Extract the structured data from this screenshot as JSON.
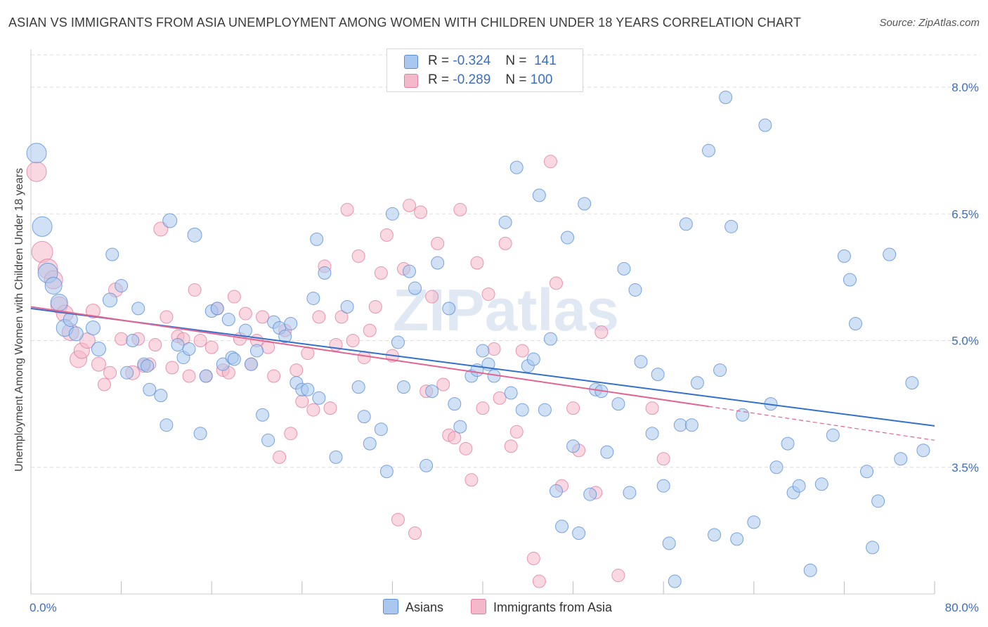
{
  "title": "ASIAN VS IMMIGRANTS FROM ASIA UNEMPLOYMENT AMONG WOMEN WITH CHILDREN UNDER 18 YEARS CORRELATION CHART",
  "source": "Source: ZipAtlas.com",
  "watermark": "ZIPatlas",
  "legend": {
    "rows": [
      {
        "r_label": "R =",
        "r_value": "-0.324",
        "n_label": "N =",
        "n_value": "141"
      },
      {
        "r_label": "R =",
        "r_value": "-0.289",
        "n_label": "N =",
        "n_value": "100"
      }
    ]
  },
  "colors": {
    "asians_fill": "#aac8ef",
    "asians_stroke": "#5a8ed6",
    "asians_line": "#3370cc",
    "immig_fill": "#f4b8cb",
    "immig_stroke": "#e47d9f",
    "immig_line": "#e26591",
    "grid": "#dddddd",
    "tick_text": "#3a6fc4"
  },
  "chart_data": {
    "type": "scatter",
    "title": "ASIAN VS IMMIGRANTS FROM ASIA UNEMPLOYMENT AMONG WOMEN WITH CHILDREN UNDER 18 YEARS CORRELATION CHART",
    "xlabel": "",
    "ylabel": "Unemployment Among Women with Children Under 18 years",
    "xlim": [
      0,
      80
    ],
    "ylim": [
      2.0,
      8.5
    ],
    "x_tick_labels": [
      "0.0%",
      "80.0%"
    ],
    "y_ticks": [
      3.5,
      5.0,
      6.5,
      8.0
    ],
    "y_tick_labels": [
      "3.5%",
      "5.0%",
      "6.5%",
      "8.0%"
    ],
    "grid": true,
    "legend_position": "top-center",
    "series": [
      {
        "name": "Asians",
        "trend": {
          "x0": 0,
          "y0": 5.38,
          "x1": 80,
          "y1": 3.99
        },
        "points": [
          [
            0.5,
            7.22,
            14
          ],
          [
            1,
            6.35,
            14
          ],
          [
            1.5,
            5.8,
            14
          ],
          [
            2,
            5.65,
            12
          ],
          [
            2.5,
            5.45,
            12
          ],
          [
            3,
            5.15,
            12
          ],
          [
            3.5,
            5.25,
            10
          ],
          [
            4,
            5.08,
            10
          ],
          [
            5.5,
            5.15,
            10
          ],
          [
            6,
            4.9,
            10
          ],
          [
            7,
            5.48,
            10
          ],
          [
            7.2,
            6.02,
            9
          ],
          [
            8,
            5.65,
            9
          ],
          [
            8.5,
            4.62,
            9
          ],
          [
            9,
            5.0,
            9
          ],
          [
            9.5,
            5.38,
            9
          ],
          [
            10,
            4.72,
            9
          ],
          [
            10.3,
            4.7,
            9
          ],
          [
            10.5,
            4.42,
            9
          ],
          [
            11.5,
            4.35,
            9
          ],
          [
            12,
            4.0,
            9
          ],
          [
            12.3,
            6.42,
            10
          ],
          [
            13,
            4.95,
            9
          ],
          [
            13.5,
            4.8,
            9
          ],
          [
            14,
            4.9,
            9
          ],
          [
            14.5,
            6.25,
            10
          ],
          [
            15,
            3.9,
            9
          ],
          [
            15.5,
            4.58,
            9
          ],
          [
            16,
            5.35,
            9
          ],
          [
            16.5,
            5.38,
            9
          ],
          [
            17,
            4.72,
            9
          ],
          [
            17.5,
            5.25,
            9
          ],
          [
            17.8,
            4.8,
            9
          ],
          [
            18,
            4.78,
            9
          ],
          [
            19,
            5.12,
            9
          ],
          [
            19.5,
            4.72,
            9
          ],
          [
            20,
            4.88,
            9
          ],
          [
            20.5,
            4.12,
            9
          ],
          [
            21,
            3.82,
            9
          ],
          [
            21.5,
            5.22,
            9
          ],
          [
            22,
            5.15,
            9
          ],
          [
            22.5,
            5.05,
            9
          ],
          [
            23,
            5.2,
            9
          ],
          [
            23.5,
            4.5,
            9
          ],
          [
            24,
            4.42,
            9
          ],
          [
            24.5,
            4.42,
            9
          ],
          [
            25,
            5.5,
            9
          ],
          [
            25.3,
            6.2,
            9
          ],
          [
            25.5,
            4.32,
            9
          ],
          [
            26,
            5.8,
            9
          ],
          [
            27,
            3.62,
            9
          ],
          [
            28,
            5.4,
            9
          ],
          [
            29,
            4.45,
            9
          ],
          [
            29.5,
            4.1,
            9
          ],
          [
            30,
            3.78,
            9
          ],
          [
            31,
            3.95,
            9
          ],
          [
            31.5,
            3.45,
            9
          ],
          [
            32,
            6.5,
            9
          ],
          [
            32.5,
            4.98,
            9
          ],
          [
            33,
            4.45,
            9
          ],
          [
            33.5,
            5.82,
            9
          ],
          [
            34,
            5.62,
            9
          ],
          [
            35,
            3.52,
            9
          ],
          [
            35.5,
            4.4,
            9
          ],
          [
            36,
            5.92,
            9
          ],
          [
            37,
            5.38,
            9
          ],
          [
            37.5,
            4.25,
            9
          ],
          [
            38,
            3.98,
            9
          ],
          [
            39,
            4.58,
            9
          ],
          [
            39.5,
            4.65,
            9
          ],
          [
            40,
            4.88,
            9
          ],
          [
            40.5,
            4.72,
            9
          ],
          [
            41,
            4.58,
            9
          ],
          [
            42,
            6.4,
            9
          ],
          [
            42.5,
            4.38,
            9
          ],
          [
            43,
            7.05,
            9
          ],
          [
            43.5,
            4.18,
            9
          ],
          [
            44,
            4.7,
            9
          ],
          [
            44.5,
            4.78,
            9
          ],
          [
            45,
            6.72,
            9
          ],
          [
            45.5,
            4.18,
            9
          ],
          [
            46,
            5.02,
            9
          ],
          [
            46.5,
            3.22,
            9
          ],
          [
            47,
            2.8,
            9
          ],
          [
            47.5,
            6.22,
            9
          ],
          [
            48,
            3.75,
            9
          ],
          [
            48.5,
            2.72,
            9
          ],
          [
            49,
            6.62,
            9
          ],
          [
            49.5,
            3.18,
            9
          ],
          [
            50,
            4.42,
            9
          ],
          [
            50.5,
            4.4,
            9
          ],
          [
            51,
            3.68,
            9
          ],
          [
            52,
            4.25,
            9
          ],
          [
            52.5,
            5.85,
            9
          ],
          [
            53,
            3.2,
            9
          ],
          [
            53.5,
            5.6,
            9
          ],
          [
            54,
            4.75,
            9
          ],
          [
            55,
            3.9,
            9
          ],
          [
            55.5,
            4.6,
            9
          ],
          [
            56,
            3.28,
            9
          ],
          [
            56.5,
            2.6,
            9
          ],
          [
            57,
            2.15,
            9
          ],
          [
            57.5,
            4.0,
            9
          ],
          [
            58,
            6.38,
            9
          ],
          [
            58.5,
            4.0,
            9
          ],
          [
            59,
            4.5,
            9
          ],
          [
            60,
            7.25,
            9
          ],
          [
            60.5,
            2.7,
            9
          ],
          [
            61,
            4.65,
            9
          ],
          [
            61.5,
            7.88,
            9
          ],
          [
            62,
            6.35,
            9
          ],
          [
            62.5,
            2.65,
            9
          ],
          [
            63,
            4.12,
            9
          ],
          [
            64,
            2.85,
            9
          ],
          [
            65,
            7.55,
            9
          ],
          [
            65.5,
            4.25,
            9
          ],
          [
            66,
            3.5,
            9
          ],
          [
            67,
            3.78,
            9
          ],
          [
            67.5,
            3.2,
            9
          ],
          [
            68,
            3.28,
            9
          ],
          [
            69,
            2.28,
            9
          ],
          [
            70,
            3.3,
            9
          ],
          [
            71,
            3.88,
            9
          ],
          [
            72,
            6.0,
            9
          ],
          [
            72.5,
            5.72,
            9
          ],
          [
            73,
            5.2,
            9
          ],
          [
            74,
            3.45,
            9
          ],
          [
            74.5,
            2.55,
            9
          ],
          [
            75,
            3.1,
            9
          ],
          [
            76,
            6.02,
            9
          ],
          [
            77,
            3.6,
            9
          ],
          [
            78,
            4.5,
            9
          ],
          [
            79,
            3.7,
            9
          ]
        ]
      },
      {
        "name": "Immigrants from Asia",
        "trend": {
          "x0": 0,
          "y0": 5.4,
          "x1": 60,
          "y1": 4.22,
          "dash_x1": 80,
          "dash_y1": 3.82
        },
        "points": [
          [
            0.5,
            7.0,
            14
          ],
          [
            1,
            6.05,
            15
          ],
          [
            1.5,
            5.85,
            14
          ],
          [
            2,
            5.72,
            13
          ],
          [
            2.5,
            5.42,
            12
          ],
          [
            3,
            5.32,
            12
          ],
          [
            3.5,
            5.1,
            12
          ],
          [
            4.2,
            4.78,
            12
          ],
          [
            4.5,
            4.88,
            11
          ],
          [
            5,
            5.0,
            11
          ],
          [
            5.5,
            5.35,
            10
          ],
          [
            6,
            4.72,
            10
          ],
          [
            6.5,
            4.48,
            9
          ],
          [
            7,
            4.62,
            9
          ],
          [
            7.5,
            5.6,
            10
          ],
          [
            8,
            5.02,
            9
          ],
          [
            9,
            4.62,
            10
          ],
          [
            9.5,
            5.02,
            9
          ],
          [
            10,
            4.7,
            9
          ],
          [
            10.5,
            4.72,
            9
          ],
          [
            11,
            4.95,
            9
          ],
          [
            11.5,
            6.32,
            10
          ],
          [
            12,
            5.28,
            9
          ],
          [
            12.5,
            4.68,
            9
          ],
          [
            13,
            5.05,
            9
          ],
          [
            13.5,
            5.02,
            9
          ],
          [
            14,
            4.58,
            9
          ],
          [
            14.5,
            5.6,
            9
          ],
          [
            15,
            5.0,
            9
          ],
          [
            15.5,
            4.58,
            9
          ],
          [
            16,
            4.92,
            9
          ],
          [
            16.5,
            5.38,
            9
          ],
          [
            17,
            4.65,
            9
          ],
          [
            17.5,
            4.62,
            9
          ],
          [
            18,
            5.52,
            9
          ],
          [
            18.5,
            5.02,
            9
          ],
          [
            19,
            5.32,
            9
          ],
          [
            19.5,
            4.72,
            9
          ],
          [
            20,
            5.0,
            9
          ],
          [
            20.5,
            5.28,
            9
          ],
          [
            21,
            4.92,
            9
          ],
          [
            21.5,
            4.58,
            9
          ],
          [
            22,
            3.62,
            9
          ],
          [
            22.5,
            5.12,
            9
          ],
          [
            23,
            3.9,
            9
          ],
          [
            23.5,
            4.65,
            9
          ],
          [
            24,
            4.28,
            9
          ],
          [
            24.5,
            4.85,
            9
          ],
          [
            25,
            4.18,
            9
          ],
          [
            25.5,
            5.28,
            9
          ],
          [
            26,
            5.88,
            9
          ],
          [
            26.5,
            4.2,
            9
          ],
          [
            27,
            4.95,
            9
          ],
          [
            27.5,
            5.28,
            9
          ],
          [
            28,
            6.55,
            9
          ],
          [
            28.5,
            5.0,
            9
          ],
          [
            29,
            6.0,
            9
          ],
          [
            29.5,
            4.8,
            9
          ],
          [
            30,
            5.12,
            9
          ],
          [
            30.5,
            5.4,
            9
          ],
          [
            31,
            5.8,
            9
          ],
          [
            31.5,
            6.25,
            9
          ],
          [
            32,
            4.82,
            9
          ],
          [
            32.5,
            2.88,
            9
          ],
          [
            33,
            5.85,
            9
          ],
          [
            33.5,
            6.6,
            9
          ],
          [
            34,
            2.72,
            9
          ],
          [
            34.5,
            6.52,
            9
          ],
          [
            35,
            4.4,
            9
          ],
          [
            35.5,
            5.52,
            9
          ],
          [
            36,
            6.15,
            9
          ],
          [
            36.5,
            4.48,
            9
          ],
          [
            37,
            3.88,
            9
          ],
          [
            37.5,
            3.85,
            9
          ],
          [
            38,
            6.55,
            9
          ],
          [
            38.5,
            3.72,
            9
          ],
          [
            39,
            3.35,
            9
          ],
          [
            39.5,
            5.92,
            9
          ],
          [
            40,
            4.2,
            9
          ],
          [
            40.5,
            5.55,
            9
          ],
          [
            41,
            4.9,
            9
          ],
          [
            41.5,
            4.32,
            9
          ],
          [
            42,
            6.15,
            9
          ],
          [
            42.5,
            3.75,
            9
          ],
          [
            43,
            3.92,
            9
          ],
          [
            43.5,
            4.88,
            9
          ],
          [
            44.5,
            2.42,
            9
          ],
          [
            45,
            2.15,
            9
          ],
          [
            46,
            7.12,
            9
          ],
          [
            46.5,
            5.68,
            9
          ],
          [
            47,
            3.28,
            9
          ],
          [
            48,
            4.2,
            9
          ],
          [
            48.5,
            3.7,
            9
          ],
          [
            50,
            3.2,
            9
          ],
          [
            50.5,
            5.1,
            9
          ],
          [
            52,
            2.22,
            9
          ],
          [
            55,
            4.2,
            9
          ],
          [
            56,
            3.6,
            9
          ]
        ]
      }
    ]
  }
}
